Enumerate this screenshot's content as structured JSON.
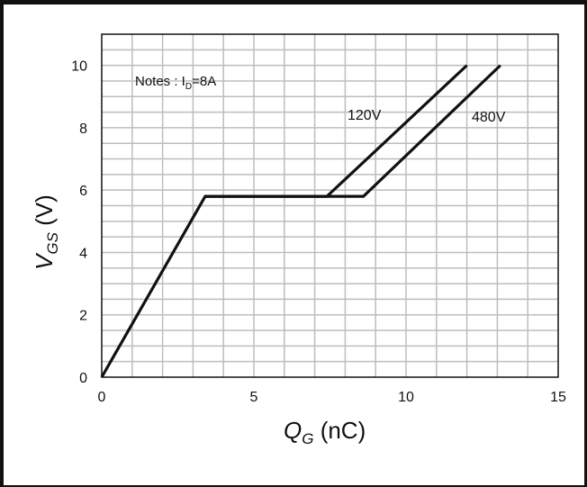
{
  "chart_data": {
    "type": "line",
    "xlim": [
      0,
      15
    ],
    "ylim": [
      0,
      11
    ],
    "grid": true,
    "x_ticks": [
      0,
      5,
      10,
      15
    ],
    "y_ticks": [
      0,
      2,
      4,
      6,
      8,
      10
    ],
    "x_label": {
      "base": "Q",
      "sub": "G",
      "unit": " (nC)"
    },
    "y_label": {
      "base": "V",
      "sub": "GS",
      "unit": " (V)"
    },
    "note": {
      "prefix": "Notes : I",
      "sub": "D",
      "suffix": "=8A"
    },
    "series": [
      {
        "name": "120V",
        "x": [
          0,
          3.4,
          7.4,
          12.0
        ],
        "y": [
          0,
          5.8,
          5.8,
          10.0
        ]
      },
      {
        "name": "480V",
        "x": [
          3.4,
          8.6,
          13.1
        ],
        "y": [
          5.8,
          5.8,
          10.0
        ]
      }
    ]
  }
}
